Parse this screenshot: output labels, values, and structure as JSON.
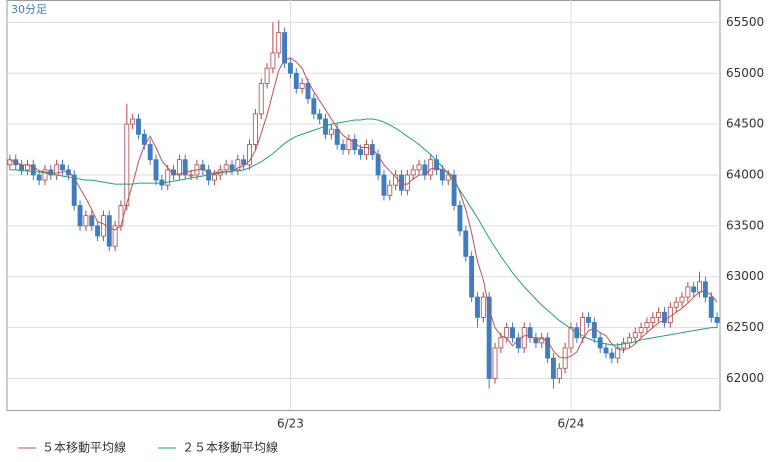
{
  "chart_data": {
    "type": "candlestick",
    "label": "30分足",
    "categories": [
      null,
      null,
      null,
      null,
      null,
      null,
      null,
      null,
      null,
      null,
      null,
      null,
      null,
      null,
      null,
      null,
      null,
      null,
      null,
      null,
      null,
      null,
      null,
      null,
      null,
      null,
      null,
      null,
      null,
      null,
      null,
      null,
      null,
      null,
      null,
      null,
      null,
      null,
      null,
      null,
      null,
      null,
      null,
      null,
      null,
      null,
      null,
      null,
      "6/23",
      null,
      null,
      null,
      null,
      null,
      null,
      null,
      null,
      null,
      null,
      null,
      null,
      null,
      null,
      null,
      null,
      null,
      null,
      null,
      null,
      null,
      null,
      null,
      null,
      null,
      null,
      null,
      null,
      null,
      null,
      null,
      null,
      null,
      null,
      null,
      null,
      null,
      null,
      null,
      null,
      null,
      null,
      null,
      null,
      null,
      null,
      null,
      "6/24",
      null,
      null,
      null,
      null,
      null,
      null,
      null,
      null,
      null,
      null,
      null,
      null,
      null,
      null,
      null,
      null,
      null,
      null,
      null,
      null,
      null,
      null,
      null,
      null,
      null
    ],
    "open": [
      64100,
      64150,
      64100,
      64050,
      64100,
      64000,
      63950,
      64050,
      64000,
      64100,
      64050,
      64000,
      63700,
      63500,
      63600,
      63500,
      63400,
      63600,
      63300,
      63500,
      63700,
      64500,
      64550,
      64400,
      64300,
      64150,
      63950,
      63900,
      64050,
      64000,
      64150,
      64000,
      64000,
      64100,
      64050,
      63950,
      64000,
      64050,
      64100,
      64050,
      64150,
      64100,
      64300,
      64600,
      64900,
      65050,
      65200,
      65400,
      65100,
      65000,
      64850,
      64900,
      64750,
      64600,
      64550,
      64400,
      64450,
      64300,
      64250,
      64350,
      64250,
      64200,
      64300,
      64200,
      64000,
      63800,
      63900,
      64000,
      63850,
      64000,
      64050,
      64100,
      64000,
      64150,
      64050,
      63950,
      64000,
      63700,
      63450,
      63200,
      62800,
      62600,
      62800,
      62000,
      62300,
      62400,
      62500,
      62400,
      62300,
      62500,
      62400,
      62350,
      62400,
      62200,
      62000,
      62100,
      62300,
      62500,
      62400,
      62600,
      62550,
      62400,
      62300,
      62250,
      62200,
      62300,
      62350,
      62400,
      62450,
      62500,
      62550,
      62600,
      62650,
      62550,
      62700,
      62750,
      62800,
      62900,
      62850,
      62950,
      62800,
      62600
    ],
    "high": [
      64200,
      64200,
      64150,
      64150,
      64150,
      64050,
      64100,
      64100,
      64150,
      64150,
      64100,
      64050,
      63750,
      63650,
      63650,
      63550,
      63650,
      63650,
      63550,
      63750,
      64700,
      64600,
      64600,
      64450,
      64350,
      64200,
      64000,
      64100,
      64100,
      64200,
      64200,
      64050,
      64150,
      64150,
      64100,
      64050,
      64100,
      64150,
      64150,
      64200,
      64200,
      64350,
      64650,
      64950,
      65100,
      65500,
      65520,
      65450,
      65150,
      65050,
      64950,
      64950,
      64800,
      64650,
      64600,
      64500,
      64500,
      64350,
      64400,
      64400,
      64300,
      64350,
      64350,
      64250,
      64050,
      63950,
      64050,
      64050,
      64050,
      64100,
      64150,
      64150,
      64200,
      64200,
      64100,
      64050,
      64050,
      63750,
      63500,
      63250,
      62850,
      62850,
      62850,
      62350,
      62450,
      62550,
      62550,
      62450,
      62550,
      62550,
      62450,
      62450,
      62450,
      62250,
      62150,
      62350,
      62550,
      62550,
      62650,
      62650,
      62600,
      62450,
      62350,
      62300,
      62350,
      62400,
      62450,
      62500,
      62550,
      62600,
      62650,
      62700,
      62700,
      62750,
      62800,
      62850,
      62950,
      62950,
      63050,
      63000,
      62850,
      62650
    ],
    "low": [
      64050,
      64050,
      64000,
      64000,
      63950,
      63900,
      63900,
      63950,
      63950,
      64000,
      63950,
      63650,
      63450,
      63450,
      63450,
      63350,
      63350,
      63250,
      63250,
      63450,
      63650,
      64450,
      64350,
      64250,
      64100,
      63900,
      63850,
      63850,
      63950,
      63950,
      63950,
      63950,
      63950,
      64000,
      63900,
      63900,
      63950,
      64000,
      64000,
      64000,
      64050,
      64050,
      64250,
      64550,
      64850,
      65000,
      65150,
      65050,
      64950,
      64800,
      64800,
      64700,
      64550,
      64500,
      64350,
      64350,
      64250,
      64200,
      64200,
      64200,
      64150,
      64150,
      64150,
      63950,
      63750,
      63750,
      63850,
      63800,
      63800,
      63950,
      64000,
      63950,
      63950,
      64000,
      63900,
      63900,
      63650,
      63400,
      63150,
      62750,
      62500,
      62550,
      61900,
      61950,
      62250,
      62350,
      62350,
      62250,
      62250,
      62350,
      62300,
      62300,
      62150,
      61900,
      61950,
      62050,
      62250,
      62350,
      62350,
      62500,
      62350,
      62250,
      62200,
      62150,
      62150,
      62250,
      62300,
      62350,
      62400,
      62450,
      62500,
      62550,
      62500,
      62500,
      62650,
      62700,
      62750,
      62800,
      62800,
      62750,
      62550,
      62500
    ],
    "close": [
      64150,
      64100,
      64050,
      64100,
      64000,
      63950,
      64050,
      64000,
      64100,
      64050,
      64000,
      63700,
      63500,
      63600,
      63500,
      63400,
      63600,
      63300,
      63500,
      63700,
      64500,
      64550,
      64400,
      64300,
      64150,
      63950,
      63900,
      64050,
      64000,
      64150,
      64000,
      64000,
      64100,
      64050,
      63950,
      64000,
      64050,
      64100,
      64050,
      64150,
      64100,
      64300,
      64600,
      64900,
      65050,
      65200,
      65400,
      65100,
      65000,
      64850,
      64900,
      64750,
      64600,
      64550,
      64400,
      64450,
      64300,
      64250,
      64350,
      64250,
      64200,
      64300,
      64200,
      64000,
      63800,
      63900,
      64000,
      63850,
      64000,
      64050,
      64100,
      64000,
      64150,
      64050,
      63950,
      64000,
      63700,
      63450,
      63200,
      62800,
      62600,
      62800,
      62000,
      62300,
      62400,
      62500,
      62400,
      62300,
      62500,
      62400,
      62350,
      62400,
      62200,
      62000,
      62100,
      62300,
      62500,
      62400,
      62600,
      62550,
      62400,
      62300,
      62250,
      62200,
      62300,
      62350,
      62400,
      62450,
      62500,
      62550,
      62600,
      62650,
      62550,
      62700,
      62750,
      62800,
      62900,
      62850,
      62950,
      62800,
      62600,
      62550
    ],
    "up_color": "#ffffff",
    "up_border": "#b04848",
    "down_color": "#3f7cc0",
    "series": [
      {
        "name": "５本移動平均線",
        "color": "#c05050",
        "values": [
          64150,
          64125,
          64100,
          64100,
          64080,
          64040,
          64030,
          64020,
          64020,
          64030,
          64040,
          63970,
          63870,
          63770,
          63660,
          63540,
          63520,
          63480,
          63460,
          63500,
          63720,
          63910,
          64130,
          64290,
          64380,
          64270,
          64140,
          64070,
          64010,
          64010,
          64020,
          64040,
          64050,
          64060,
          64020,
          64020,
          64030,
          64030,
          64030,
          64070,
          64090,
          64140,
          64240,
          64410,
          64590,
          64810,
          65030,
          65130,
          65150,
          65110,
          65050,
          64920,
          64820,
          64730,
          64640,
          64550,
          64460,
          64390,
          64350,
          64320,
          64270,
          64270,
          64260,
          64190,
          64100,
          64040,
          63980,
          63910,
          63910,
          63960,
          64000,
          64000,
          64060,
          64070,
          64050,
          64030,
          63970,
          63830,
          63660,
          63430,
          63150,
          62970,
          62680,
          62500,
          62420,
          62400,
          62320,
          62380,
          62420,
          62420,
          62390,
          62390,
          62370,
          62270,
          62210,
          62200,
          62220,
          62260,
          62380,
          62470,
          62490,
          62450,
          62420,
          62340,
          62290,
          62280,
          62300,
          62340,
          62400,
          62450,
          62500,
          62550,
          62570,
          62610,
          62650,
          62690,
          62740,
          62800,
          62850,
          62860,
          62820,
          62750
        ]
      },
      {
        "name": "２５本移動平均線",
        "color": "#20a080",
        "values": [
          64050,
          64050,
          64040,
          64040,
          64030,
          64030,
          64020,
          64010,
          64000,
          63990,
          63980,
          63970,
          63960,
          63950,
          63950,
          63940,
          63930,
          63920,
          63910,
          63910,
          63910,
          63910,
          63920,
          63920,
          63920,
          63920,
          63920,
          63930,
          63940,
          63950,
          63960,
          63970,
          63980,
          63990,
          64000,
          64010,
          64020,
          64030,
          64040,
          64040,
          64050,
          64070,
          64100,
          64130,
          64170,
          64210,
          64260,
          64310,
          64350,
          64380,
          64400,
          64420,
          64440,
          64460,
          64480,
          64500,
          64510,
          64520,
          64530,
          64540,
          64540,
          64550,
          64550,
          64540,
          64520,
          64490,
          64460,
          64420,
          64380,
          64340,
          64300,
          64250,
          64200,
          64140,
          64080,
          64010,
          63930,
          63850,
          63760,
          63670,
          63580,
          63480,
          63380,
          63290,
          63200,
          63120,
          63040,
          62970,
          62900,
          62840,
          62780,
          62720,
          62670,
          62620,
          62570,
          62530,
          62490,
          62450,
          62420,
          62390,
          62370,
          62350,
          62340,
          62330,
          62330,
          62340,
          62350,
          62360,
          62380,
          62390,
          62400,
          62410,
          62420,
          62430,
          62440,
          62450,
          62460,
          62470,
          62480,
          62490,
          62500,
          62500
        ]
      }
    ],
    "ylim": [
      61690,
      65720
    ],
    "yticks": [
      62000,
      62500,
      63000,
      63500,
      64000,
      64500,
      65000,
      65500
    ],
    "grid": true
  }
}
